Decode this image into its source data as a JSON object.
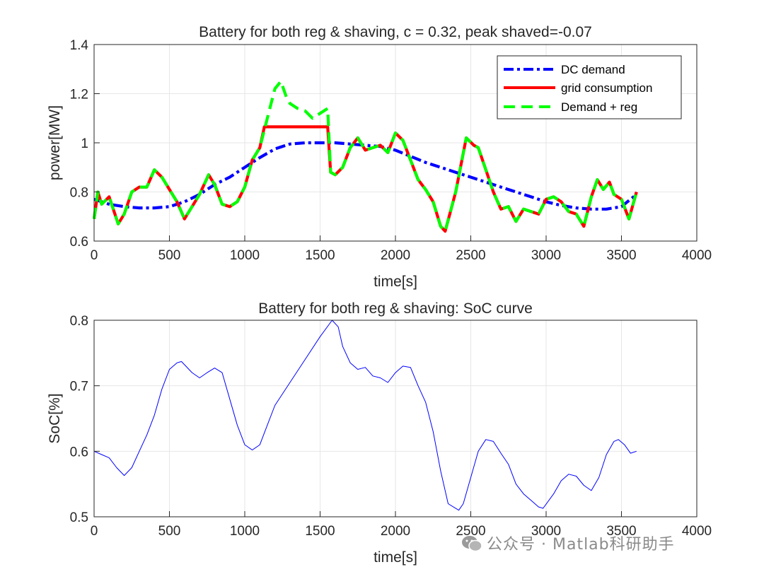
{
  "chart_data": [
    {
      "type": "line",
      "title": "Battery for both reg & shaving, c = 0.32, peak shaved=-0.07",
      "xlabel": "time[s]",
      "ylabel": "power[MW]",
      "xlim": [
        0,
        4000
      ],
      "ylim": [
        0.6,
        1.4
      ],
      "xticks": [
        "0",
        "500",
        "1000",
        "1500",
        "2000",
        "2500",
        "3000",
        "3500",
        "4000"
      ],
      "yticks": [
        "0.6",
        "0.8",
        "1",
        "1.2",
        "1.4"
      ],
      "grid": true,
      "legend_position": "top-right",
      "series": [
        {
          "name": "DC demand",
          "color": "#0000ff",
          "style": "dash-dot",
          "x": [
            0,
            100,
            200,
            300,
            400,
            500,
            600,
            700,
            800,
            900,
            1000,
            1100,
            1200,
            1300,
            1400,
            1500,
            1600,
            1700,
            1800,
            1900,
            2000,
            2100,
            2200,
            2300,
            2400,
            2500,
            2600,
            2700,
            2800,
            2900,
            3000,
            3100,
            3200,
            3300,
            3400,
            3500,
            3600
          ],
          "y": [
            0.77,
            0.75,
            0.74,
            0.735,
            0.735,
            0.74,
            0.76,
            0.79,
            0.83,
            0.86,
            0.9,
            0.94,
            0.975,
            0.995,
            1.0,
            1.0,
            1.0,
            0.995,
            0.99,
            0.985,
            0.97,
            0.945,
            0.92,
            0.9,
            0.88,
            0.86,
            0.84,
            0.82,
            0.8,
            0.78,
            0.76,
            0.745,
            0.735,
            0.73,
            0.73,
            0.74,
            0.79
          ]
        },
        {
          "name": "grid consumption",
          "color": "#ff0000",
          "style": "solid",
          "x": [
            0,
            25,
            50,
            100,
            160,
            200,
            250,
            300,
            350,
            400,
            450,
            500,
            550,
            600,
            650,
            700,
            760,
            800,
            850,
            900,
            950,
            1000,
            1050,
            1100,
            1130,
            1550,
            1570,
            1600,
            1650,
            1700,
            1750,
            1800,
            1850,
            1900,
            1950,
            2000,
            2050,
            2100,
            2150,
            2200,
            2250,
            2300,
            2330,
            2400,
            2470,
            2520,
            2550,
            2600,
            2650,
            2700,
            2750,
            2800,
            2850,
            2900,
            2950,
            3000,
            3050,
            3100,
            3150,
            3200,
            3250,
            3300,
            3340,
            3380,
            3420,
            3450,
            3500,
            3550,
            3600
          ],
          "y": [
            0.69,
            0.8,
            0.75,
            0.78,
            0.67,
            0.71,
            0.8,
            0.82,
            0.82,
            0.89,
            0.86,
            0.81,
            0.76,
            0.69,
            0.74,
            0.79,
            0.87,
            0.83,
            0.75,
            0.74,
            0.76,
            0.82,
            0.93,
            0.98,
            1.065,
            1.065,
            0.88,
            0.87,
            0.9,
            0.98,
            1.02,
            0.97,
            0.98,
            0.99,
            0.96,
            1.04,
            1.01,
            0.93,
            0.85,
            0.81,
            0.76,
            0.66,
            0.64,
            0.8,
            1.02,
            0.99,
            0.98,
            0.89,
            0.8,
            0.73,
            0.74,
            0.68,
            0.73,
            0.72,
            0.71,
            0.77,
            0.78,
            0.76,
            0.72,
            0.71,
            0.66,
            0.78,
            0.85,
            0.81,
            0.84,
            0.79,
            0.77,
            0.69,
            0.8
          ]
        },
        {
          "name": "Demand + reg",
          "color": "#00ff00",
          "style": "dashed",
          "x": [
            0,
            25,
            50,
            100,
            160,
            200,
            250,
            300,
            350,
            400,
            450,
            500,
            550,
            600,
            650,
            700,
            760,
            800,
            850,
            900,
            950,
            1000,
            1050,
            1100,
            1150,
            1200,
            1240,
            1280,
            1300,
            1350,
            1400,
            1450,
            1500,
            1550,
            1570,
            1600,
            1650,
            1700,
            1750,
            1800,
            1850,
            1900,
            1950,
            2000,
            2050,
            2100,
            2150,
            2200,
            2250,
            2300,
            2330,
            2400,
            2470,
            2520,
            2550,
            2600,
            2650,
            2700,
            2750,
            2800,
            2850,
            2900,
            2950,
            3000,
            3050,
            3100,
            3150,
            3200,
            3250,
            3300,
            3340,
            3380,
            3420,
            3450,
            3500,
            3550,
            3600
          ],
          "y": [
            0.69,
            0.8,
            0.75,
            0.78,
            0.67,
            0.71,
            0.8,
            0.82,
            0.82,
            0.89,
            0.86,
            0.81,
            0.76,
            0.69,
            0.74,
            0.79,
            0.87,
            0.83,
            0.75,
            0.74,
            0.76,
            0.82,
            0.93,
            0.98,
            1.1,
            1.22,
            1.25,
            1.18,
            1.16,
            1.14,
            1.13,
            1.1,
            1.12,
            1.14,
            0.88,
            0.87,
            0.9,
            0.98,
            1.02,
            0.97,
            0.98,
            0.99,
            0.96,
            1.04,
            1.01,
            0.93,
            0.85,
            0.81,
            0.76,
            0.66,
            0.64,
            0.8,
            1.02,
            0.99,
            0.98,
            0.89,
            0.8,
            0.73,
            0.74,
            0.68,
            0.73,
            0.72,
            0.71,
            0.77,
            0.78,
            0.76,
            0.72,
            0.71,
            0.66,
            0.78,
            0.85,
            0.81,
            0.84,
            0.79,
            0.77,
            0.69,
            0.8
          ]
        }
      ]
    },
    {
      "type": "line",
      "title": "Battery for both reg & shaving: SoC curve",
      "xlabel": "time[s]",
      "ylabel": "SoC[%]",
      "xlim": [
        0,
        4000
      ],
      "ylim": [
        0.5,
        0.8
      ],
      "xticks": [
        "0",
        "500",
        "1000",
        "1500",
        "2000",
        "2500",
        "3000",
        "3500",
        "4000"
      ],
      "yticks": [
        "0.5",
        "0.6",
        "0.7",
        "0.8"
      ],
      "grid": true,
      "series": [
        {
          "name": "SoC",
          "color": "#0000ff",
          "style": "solid",
          "x": [
            0,
            50,
            100,
            150,
            200,
            250,
            300,
            350,
            400,
            450,
            500,
            550,
            580,
            650,
            700,
            750,
            800,
            850,
            900,
            950,
            1000,
            1050,
            1100,
            1150,
            1200,
            1300,
            1400,
            1500,
            1580,
            1620,
            1650,
            1700,
            1750,
            1800,
            1850,
            1900,
            1950,
            2000,
            2050,
            2100,
            2150,
            2200,
            2250,
            2300,
            2350,
            2420,
            2450,
            2500,
            2550,
            2600,
            2650,
            2700,
            2750,
            2800,
            2850,
            2900,
            2950,
            2980,
            3050,
            3100,
            3150,
            3200,
            3250,
            3300,
            3350,
            3400,
            3450,
            3480,
            3520,
            3560,
            3600
          ],
          "y": [
            0.6,
            0.595,
            0.59,
            0.575,
            0.563,
            0.575,
            0.6,
            0.625,
            0.655,
            0.695,
            0.725,
            0.735,
            0.737,
            0.72,
            0.712,
            0.72,
            0.727,
            0.72,
            0.68,
            0.64,
            0.61,
            0.602,
            0.61,
            0.64,
            0.67,
            0.705,
            0.74,
            0.775,
            0.8,
            0.79,
            0.76,
            0.735,
            0.725,
            0.728,
            0.715,
            0.712,
            0.705,
            0.72,
            0.73,
            0.728,
            0.7,
            0.675,
            0.63,
            0.57,
            0.52,
            0.51,
            0.52,
            0.56,
            0.6,
            0.618,
            0.615,
            0.597,
            0.58,
            0.55,
            0.535,
            0.525,
            0.515,
            0.513,
            0.535,
            0.555,
            0.565,
            0.562,
            0.548,
            0.54,
            0.56,
            0.595,
            0.615,
            0.618,
            0.61,
            0.597,
            0.6
          ]
        }
      ]
    }
  ],
  "watermark": {
    "text": "公众号 · Matlab科研助手",
    "icon": "wechat-icon"
  }
}
